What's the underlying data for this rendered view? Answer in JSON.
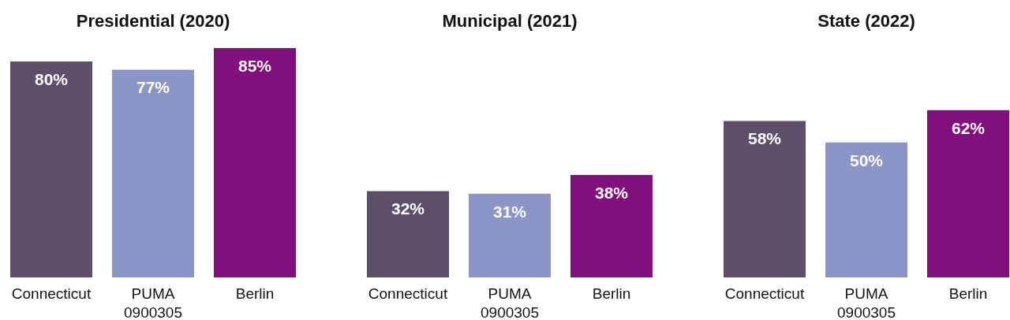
{
  "chart_data": [
    {
      "type": "bar",
      "title": "Presidential (2020)",
      "categories": [
        "Connecticut",
        "PUMA 0900305",
        "Berlin"
      ],
      "values": [
        80,
        77,
        85
      ],
      "colors": [
        "#5d4f6a",
        "#8c96c6",
        "#810f7c"
      ],
      "value_labels": [
        "80%",
        "77%",
        "85%"
      ]
    },
    {
      "type": "bar",
      "title": "Municipal (2021)",
      "categories": [
        "Connecticut",
        "PUMA 0900305",
        "Berlin"
      ],
      "values": [
        32,
        31,
        38
      ],
      "colors": [
        "#5d4f6a",
        "#8c96c6",
        "#810f7c"
      ],
      "value_labels": [
        "32%",
        "31%",
        "38%"
      ]
    },
    {
      "type": "bar",
      "title": "State (2022)",
      "categories": [
        "Connecticut",
        "PUMA 0900305",
        "Berlin"
      ],
      "values": [
        58,
        50,
        62
      ],
      "colors": [
        "#5d4f6a",
        "#8c96c6",
        "#810f7c"
      ],
      "value_labels": [
        "58%",
        "50%",
        "62%"
      ]
    }
  ]
}
